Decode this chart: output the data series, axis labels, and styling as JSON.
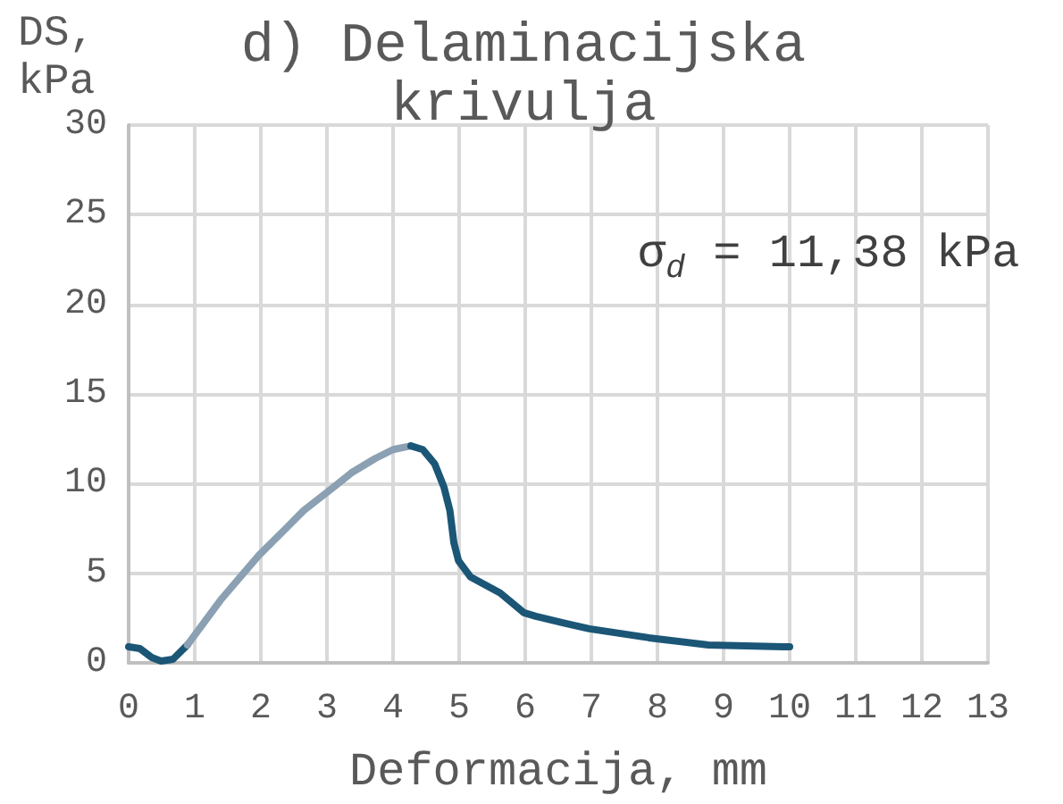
{
  "chart_data": {
    "type": "line",
    "title": "d) Delaminacijska krivulja",
    "xlabel": "Deformacija, mm",
    "ylabel": "DS, kPa",
    "annotations": [
      "σ$_{d}$ = 11,38 kPa"
    ],
    "series": [
      {
        "color": "#1b5676",
        "x": [
          0,
          0.17,
          0.35,
          0.49,
          0.67,
          0.89
        ],
        "values": [
          0.9,
          0.8,
          0.3,
          0.1,
          0.2,
          1.0
        ]
      },
      {
        "color": "#8ba0b2",
        "x": [
          0.89,
          1.39,
          1.97,
          2.38,
          2.65,
          3.1,
          3.37,
          3.73,
          4.0,
          4.27
        ],
        "values": [
          1.0,
          3.5,
          6.0,
          7.5,
          8.5,
          9.8,
          10.6,
          11.4,
          11.9,
          12.1
        ]
      },
      {
        "color": "#1b5676",
        "x": [
          4.27,
          4.45,
          4.63,
          4.77,
          4.86,
          4.92,
          4.99,
          5.17,
          5.62,
          5.98,
          6.16,
          6.61,
          6.97,
          7.87,
          8.77,
          9.9,
          10
        ],
        "values": [
          12.1,
          11.9,
          11.1,
          9.8,
          8.5,
          6.7,
          5.7,
          4.8,
          3.9,
          2.8,
          2.6,
          2.2,
          1.9,
          1.4,
          1.0,
          0.9,
          0.9
        ]
      }
    ],
    "xlim": [
      0,
      13
    ],
    "xticks": [
      0,
      1,
      2,
      3,
      4,
      5,
      6,
      7,
      8,
      9,
      10,
      11,
      12,
      13
    ],
    "ylim": [
      0,
      30
    ],
    "yticks": [
      0,
      5,
      10,
      15,
      20,
      25,
      30
    ],
    "grid": true,
    "marker": "none",
    "line_style": "solid"
  }
}
